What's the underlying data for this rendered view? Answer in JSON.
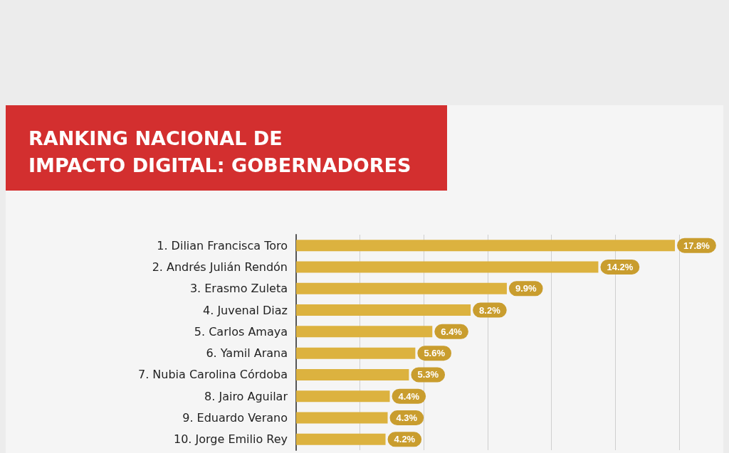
{
  "chart_data": {
    "type": "bar",
    "orientation": "horizontal",
    "title": "RANKING NACIONAL DE\nIMPACTO DIGITAL: GOBERNADORES",
    "categories": [
      "1. Dilian Francisca Toro",
      "2. Andrés Julián Rendón",
      "3. Erasmo Zuleta",
      "4. Juvenal Diaz",
      "5. Carlos Amaya",
      "6. Yamil Arana",
      "7. Nubia Carolina Córdoba",
      "8. Jairo Aguilar",
      "9. Eduardo Verano",
      "10. Jorge Emilio Rey"
    ],
    "values": [
      17.8,
      14.2,
      9.9,
      8.2,
      6.4,
      5.6,
      5.3,
      4.4,
      4.3,
      4.2
    ],
    "value_labels": [
      "17.8%",
      "14.2%",
      "9.9%",
      "8.2%",
      "6.4%",
      "5.6%",
      "5.3%",
      "4.4%",
      "4.3%",
      "4.2%"
    ],
    "color": "#dcb23f",
    "grid": "x",
    "tick_labels": "y"
  }
}
